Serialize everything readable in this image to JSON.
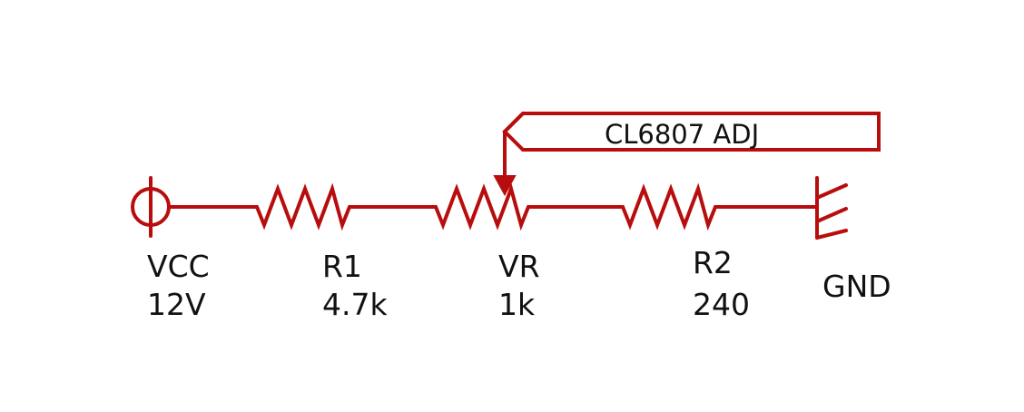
{
  "colors": {
    "wire": "#b70d0d",
    "text": "#111111",
    "background": "#ffffff"
  },
  "power": {
    "name": "VCC",
    "value": "12V"
  },
  "r1": {
    "name": "R1",
    "value": "4.7k"
  },
  "vr": {
    "name": "VR",
    "value": "1k"
  },
  "r2": {
    "name": "R2",
    "value": "240"
  },
  "ground": {
    "name": "GND"
  },
  "net_label": {
    "text": "CL6807 ADJ"
  }
}
